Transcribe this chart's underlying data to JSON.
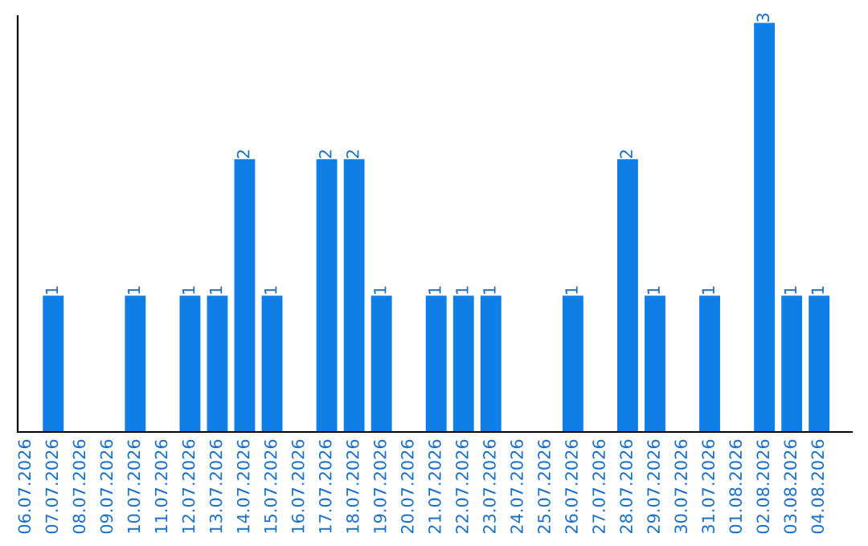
{
  "chart_data": {
    "type": "bar",
    "categories": [
      "06.07.2026",
      "07.07.2026",
      "08.07.2026",
      "09.07.2026",
      "10.07.2026",
      "11.07.2026",
      "12.07.2026",
      "13.07.2026",
      "14.07.2026",
      "15.07.2026",
      "16.07.2026",
      "17.07.2026",
      "18.07.2026",
      "19.07.2026",
      "20.07.2026",
      "21.07.2026",
      "22.07.2026",
      "23.07.2026",
      "24.07.2026",
      "25.07.2026",
      "26.07.2026",
      "27.07.2026",
      "28.07.2026",
      "29.07.2026",
      "30.07.2026",
      "31.07.2026",
      "01.08.2026",
      "02.08.2026",
      "03.08.2026",
      "04.08.2026"
    ],
    "values": [
      0,
      1,
      0,
      0,
      1,
      0,
      1,
      1,
      2,
      1,
      0,
      2,
      2,
      1,
      0,
      1,
      1,
      1,
      0,
      0,
      1,
      0,
      2,
      1,
      0,
      1,
      0,
      3,
      1,
      1
    ],
    "value_labels": [
      null,
      "1",
      null,
      null,
      "1",
      null,
      "1",
      "1",
      "2",
      "1",
      null,
      "2",
      "2",
      "1",
      null,
      "1",
      "1",
      "1",
      null,
      null,
      "1",
      null,
      "2",
      "1",
      null,
      "1",
      null,
      "3",
      "1",
      "1"
    ],
    "color": "#0f7ee6",
    "ylim": [
      0,
      3.05
    ],
    "tick_labels": "x",
    "grid": false,
    "legend": false
  }
}
